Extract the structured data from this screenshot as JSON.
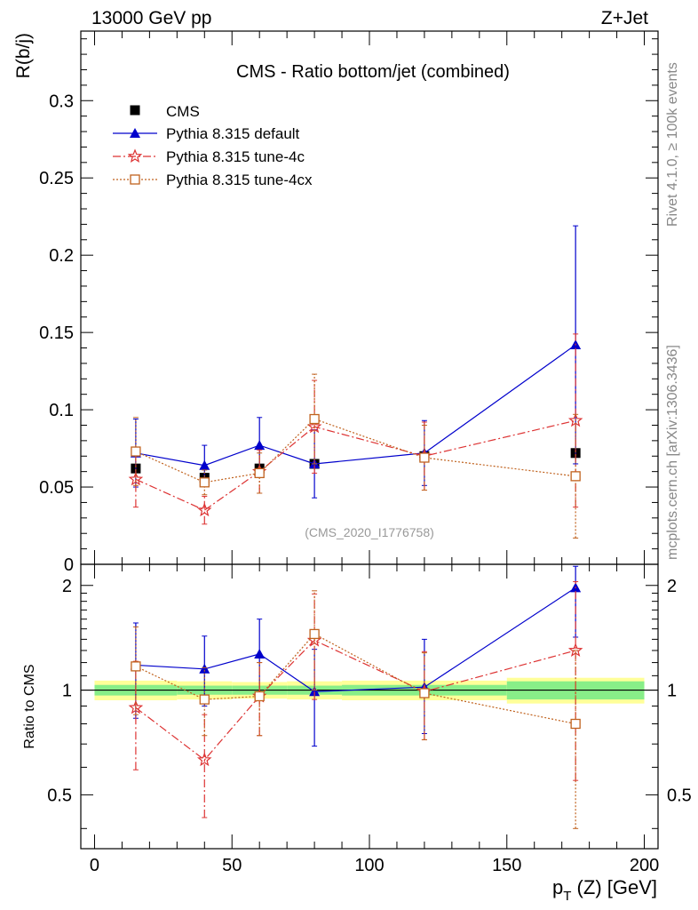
{
  "header": {
    "left": "13000 GeV pp",
    "right": "Z+Jet",
    "side_rivet": "Rivet 4.1.0, ≥ 100k events",
    "side_mcplots": "mcplots.cern.ch [arXiv:1306.3436]"
  },
  "chart_data": {
    "type": "scatter",
    "title": "CMS - Ratio bottom/jet (combined)",
    "watermark": "(CMS_2020_I1776758)",
    "xlabel_main": "p",
    "xlabel_sub": "T",
    "xlabel_rest": " (Z) [GeV]",
    "ylabel": "R(b/j)",
    "ratio_ylabel": "Ratio to CMS",
    "xlim": [
      -5,
      205
    ],
    "ylim": [
      0,
      0.345
    ],
    "ratio_ylim": [
      0.35,
      2.3
    ],
    "x_ticks": [
      "0",
      "50",
      "100",
      "150",
      "200"
    ],
    "x_tick_values": [
      0,
      50,
      100,
      150,
      200
    ],
    "y_ticks": [
      "0",
      "0.05",
      "0.1",
      "0.15",
      "0.2",
      "0.25",
      "0.3"
    ],
    "y_tick_values": [
      0,
      0.05,
      0.1,
      0.15,
      0.2,
      0.25,
      0.3
    ],
    "ratio_ticks": [
      "0.5",
      "1",
      "2"
    ],
    "ratio_tick_values": [
      0.5,
      1,
      2
    ],
    "data": {
      "name": "CMS",
      "x": [
        15,
        40,
        60,
        80,
        120,
        175
      ],
      "xerr": [
        [
          0,
          30
        ],
        [
          30,
          50
        ],
        [
          50,
          70
        ],
        [
          70,
          90
        ],
        [
          90,
          150
        ],
        [
          150,
          200
        ]
      ],
      "y": [
        0.062,
        0.056,
        0.062,
        0.065,
        0.07,
        0.072
      ],
      "band_inner": [
        0.035,
        0.03,
        0.03,
        0.03,
        0.035,
        0.06
      ],
      "band_outer": [
        0.065,
        0.06,
        0.055,
        0.06,
        0.065,
        0.085
      ]
    },
    "series": [
      {
        "name": "Pythia 8.315 default",
        "color": "#0000cc",
        "marker": "triangle",
        "dash": "",
        "x": [
          15,
          40,
          60,
          80,
          120,
          175
        ],
        "y": [
          0.072,
          0.064,
          0.077,
          0.065,
          0.072,
          0.142
        ],
        "err": [
          0.022,
          0.013,
          0.018,
          0.022,
          0.021,
          0.077
        ],
        "ratio": [
          1.18,
          1.15,
          1.27,
          0.99,
          1.02,
          1.97
        ],
        "ratio_err": [
          [
            0.35,
            0.38
          ],
          [
            0.25,
            0.28
          ],
          [
            0.3,
            0.33
          ],
          [
            0.3,
            0.32
          ],
          [
            0.27,
            0.38
          ],
          [
            0.55,
            0.3
          ]
        ]
      },
      {
        "name": "Pythia 8.315 tune-4c",
        "color": "#dd3333",
        "marker": "star",
        "dash": "9,3,2,3",
        "x": [
          15,
          40,
          60,
          80,
          120,
          175
        ],
        "y": [
          0.055,
          0.035,
          0.06,
          0.089,
          0.07,
          0.093
        ],
        "err": [
          0.018,
          0.009,
          0.014,
          0.03,
          0.022,
          0.056
        ],
        "ratio": [
          0.89,
          0.63,
          0.96,
          1.39,
          0.99,
          1.3
        ],
        "ratio_err": [
          [
            0.3,
            0.32
          ],
          [
            0.2,
            0.22
          ],
          [
            0.22,
            0.24
          ],
          [
            0.45,
            0.5
          ],
          [
            0.27,
            0.3
          ],
          [
            0.75,
            0.75
          ]
        ]
      },
      {
        "name": "Pythia 8.315 tune-4cx",
        "color": "#c0621e",
        "marker": "square-open",
        "dash": "2,2",
        "x": [
          15,
          40,
          60,
          80,
          120,
          175
        ],
        "y": [
          0.073,
          0.053,
          0.059,
          0.094,
          0.069,
          0.057
        ],
        "err": [
          0.022,
          0.008,
          0.013,
          0.029,
          0.021,
          0.04
        ],
        "ratio": [
          1.17,
          0.94,
          0.96,
          1.45,
          0.98,
          0.8
        ],
        "ratio_err": [
          [
            0.32,
            0.35
          ],
          [
            0.2,
            0.22
          ],
          [
            0.22,
            0.24
          ],
          [
            0.45,
            0.48
          ],
          [
            0.26,
            0.3
          ],
          [
            0.4,
            0.5
          ]
        ]
      }
    ]
  }
}
